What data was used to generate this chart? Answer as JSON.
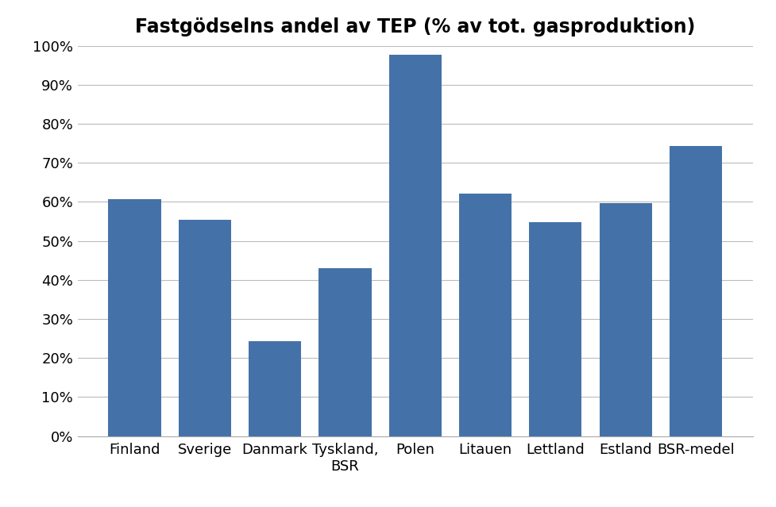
{
  "title": "Fastgödselns andel av TEP (% av tot. gasproduktion)",
  "categories": [
    "Finland",
    "Sverige",
    "Danmark",
    "Tyskland,\nBSR",
    "Polen",
    "Litauen",
    "Lettland",
    "Estland",
    "BSR-medel"
  ],
  "values": [
    0.607,
    0.554,
    0.243,
    0.43,
    0.977,
    0.621,
    0.548,
    0.596,
    0.742
  ],
  "bar_color": "#4472A8",
  "ylim": [
    0,
    1.0
  ],
  "yticks": [
    0.0,
    0.1,
    0.2,
    0.3,
    0.4,
    0.5,
    0.6,
    0.7,
    0.8,
    0.9,
    1.0
  ],
  "ytick_labels": [
    "0%",
    "10%",
    "20%",
    "30%",
    "40%",
    "50%",
    "60%",
    "70%",
    "80%",
    "90%",
    "100%"
  ],
  "title_fontsize": 17,
  "tick_fontsize": 13,
  "background_color": "#ffffff",
  "grid_color": "#bbbbbb",
  "bar_width": 0.75,
  "figsize": [
    9.77,
    6.39
  ],
  "dpi": 100
}
